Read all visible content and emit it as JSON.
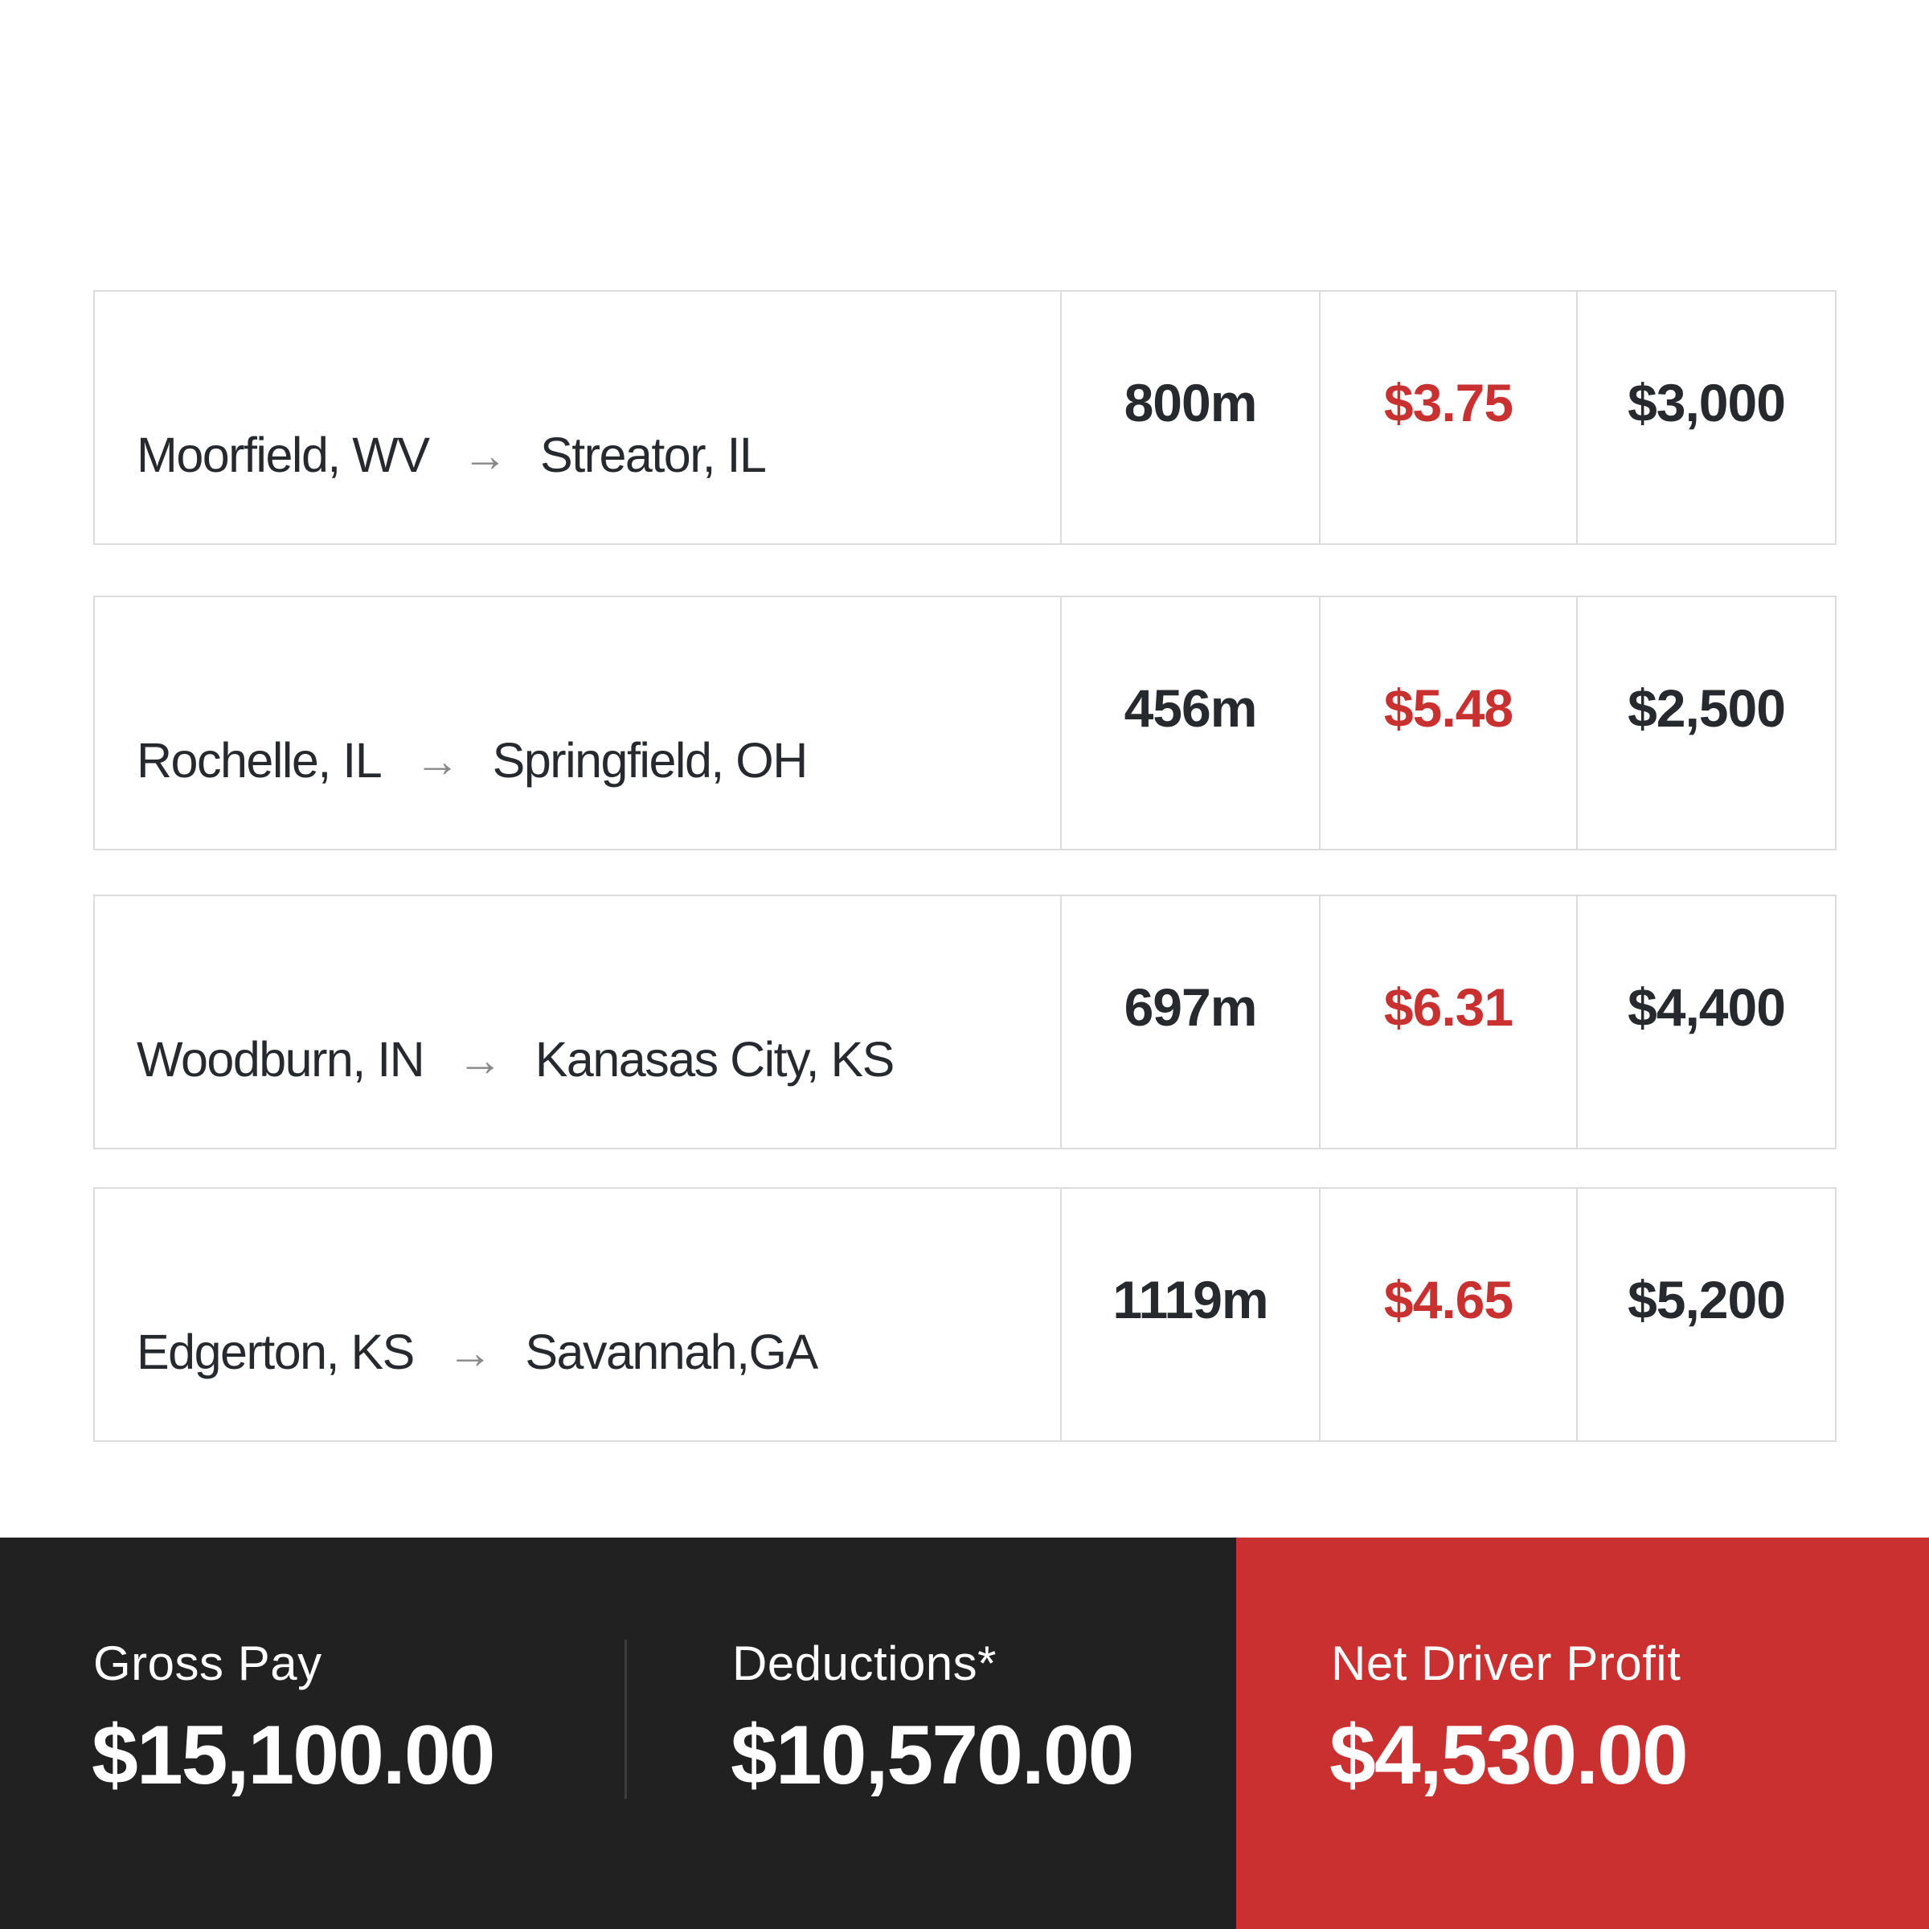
{
  "loads": [
    {
      "origin": "Moorfield, WV",
      "destination": "Streator, IL",
      "miles": "800m",
      "rate": "$3.75",
      "pay": "$3,000"
    },
    {
      "origin": "Rochelle, IL",
      "destination": "Springfield, OH",
      "miles": "456m",
      "rate": "$5.48",
      "pay": "$2,500"
    },
    {
      "origin": "Woodburn, IN",
      "destination": "Kanasas City, KS",
      "miles": "697m",
      "rate": "$6.31",
      "pay": "$4,400"
    },
    {
      "origin": "Edgerton, KS",
      "destination": "Savannah,GA",
      "miles": "1119m",
      "rate": "$4.65",
      "pay": "$5,200"
    }
  ],
  "icons": {
    "route_arrow": "arrow-right-icon",
    "arrow_glyph": "→"
  },
  "summary": {
    "gross_label": "Gross Pay",
    "gross_value": "$15,100.00",
    "deductions_label": "Deductions*",
    "deductions_value": "$10,570.00",
    "net_label": "Net Driver Profit",
    "net_value": "$4,530.00"
  },
  "colors": {
    "accent": "#c93030",
    "dark": "#212121",
    "text": "#262a2f",
    "border": "#dcdcdc"
  }
}
